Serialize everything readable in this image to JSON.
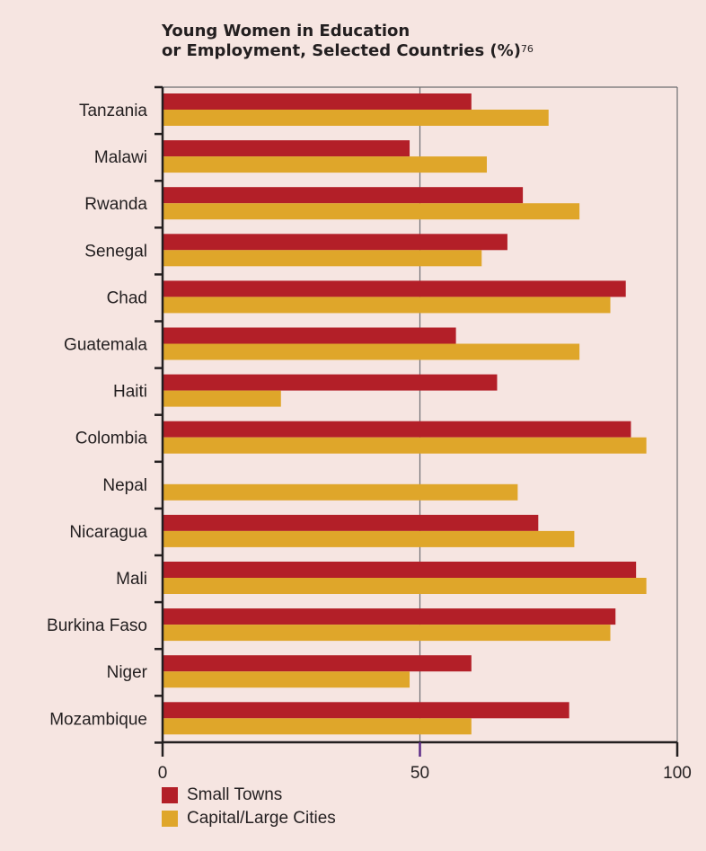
{
  "title_line1": "Young Women in Education",
  "title_line2": "or Employment, Selected Countries (%)",
  "title_superscript": "76",
  "colors": {
    "small_towns": "#b31f28",
    "capital_cities": "#dfa62a",
    "axis": "#231f20",
    "gridline": "#6d6e71",
    "midline_tick": "#5b2a86"
  },
  "chart_data": {
    "type": "bar",
    "orientation": "horizontal",
    "categories": [
      "Tanzania",
      "Malawi",
      "Rwanda",
      "Senegal",
      "Chad",
      "Guatemala",
      "Haiti",
      "Colombia",
      "Nepal",
      "Nicaragua",
      "Mali",
      "Burkina Faso",
      "Niger",
      "Mozambique"
    ],
    "series": [
      {
        "name": "Small Towns",
        "values": [
          60,
          48,
          70,
          67,
          90,
          57,
          65,
          91,
          null,
          73,
          92,
          88,
          60,
          79
        ]
      },
      {
        "name": "Capital/Large Cities",
        "values": [
          75,
          63,
          81,
          62,
          87,
          81,
          23,
          94,
          69,
          80,
          94,
          87,
          48,
          60
        ]
      }
    ],
    "xlim": [
      0,
      100
    ],
    "xticks": [
      0,
      50,
      100
    ],
    "xtick_labels": [
      "0",
      "50",
      "100"
    ],
    "gridlines": [
      50
    ],
    "legend_position": "bottom-left"
  }
}
